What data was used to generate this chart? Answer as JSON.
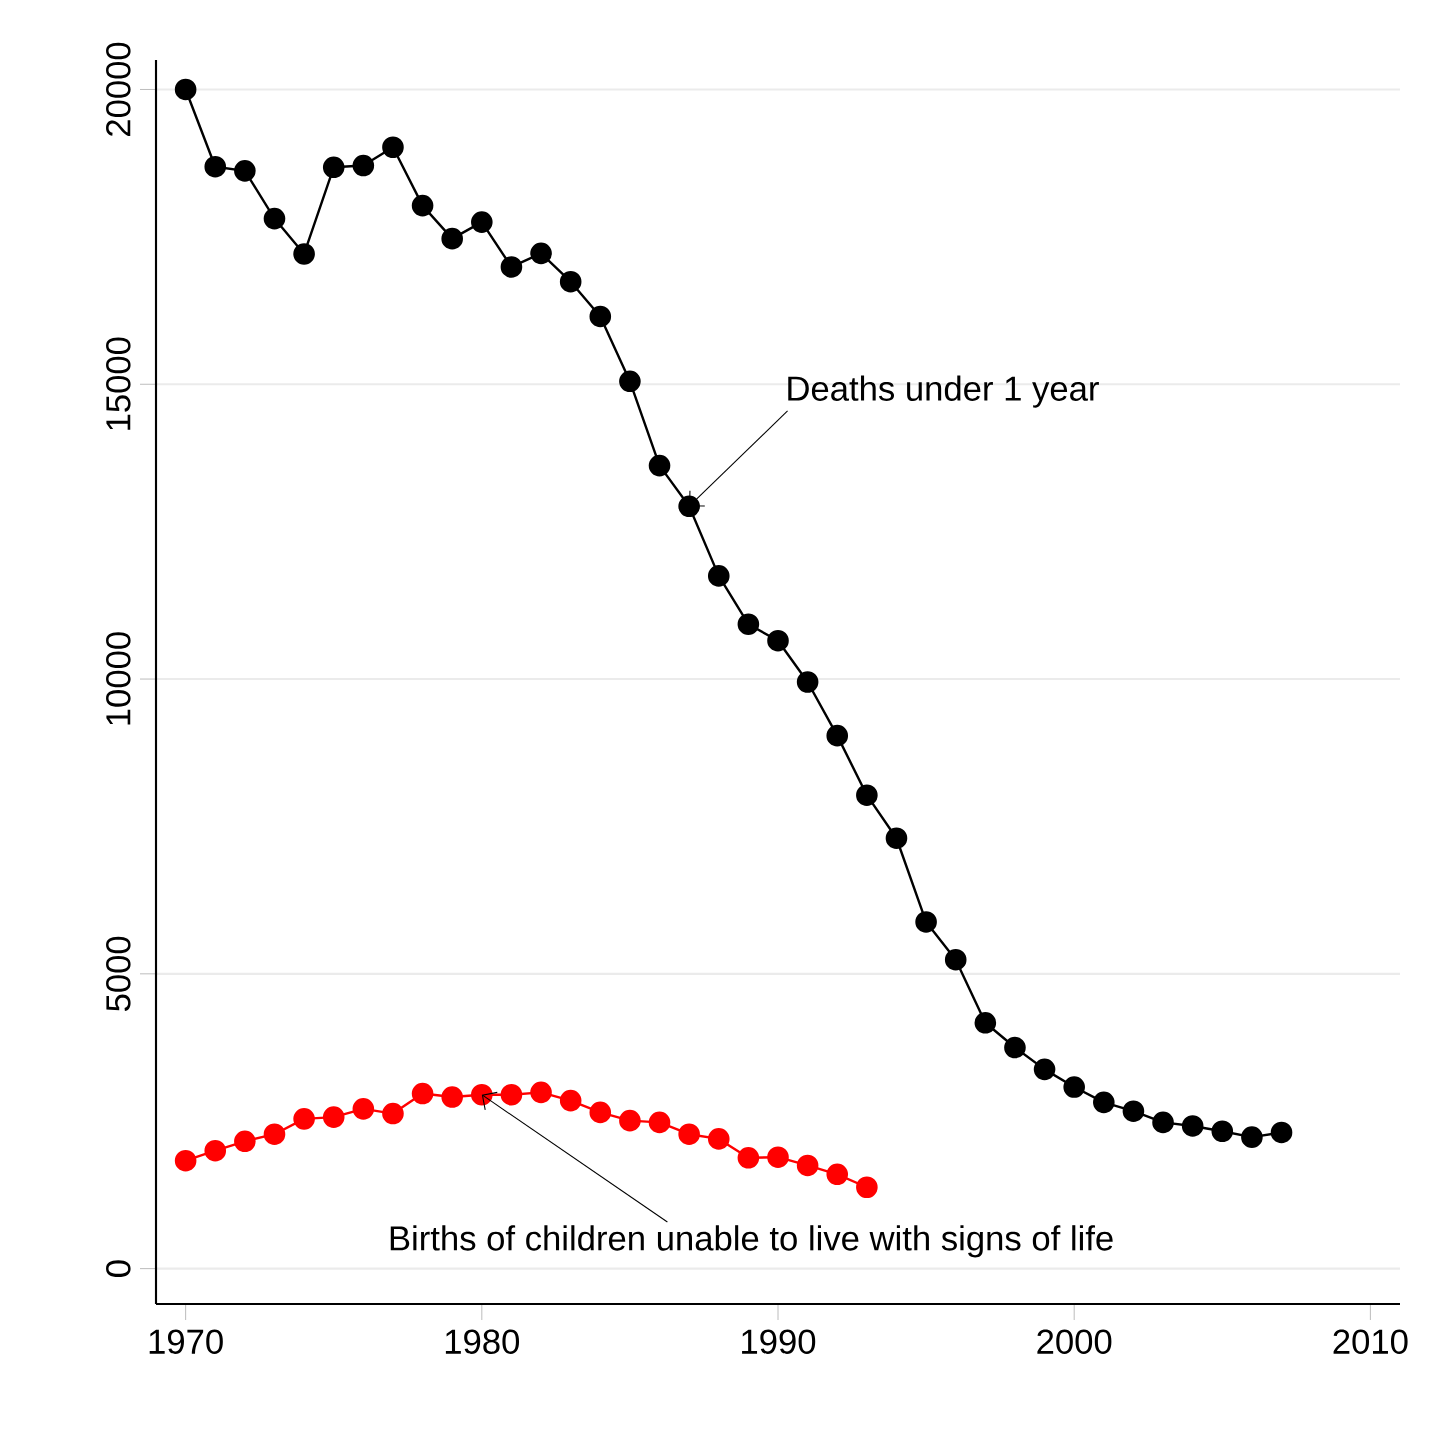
{
  "chart_data": {
    "type": "line",
    "x": [
      1970,
      1971,
      1972,
      1973,
      1974,
      1975,
      1976,
      1977,
      1978,
      1979,
      1980,
      1981,
      1982,
      1983,
      1984,
      1985,
      1986,
      1987,
      1988,
      1989,
      1990,
      1991,
      1992,
      1993,
      1994,
      1995,
      1996,
      1997,
      1998,
      1999,
      2000,
      2001,
      2002,
      2003,
      2004,
      2005,
      2006,
      2007
    ],
    "series": [
      {
        "color": "#000000",
        "values": [
          20000,
          18690,
          18620,
          17810,
          17210,
          18680,
          18710,
          19020,
          18030,
          17470,
          17750,
          16990,
          17220,
          16740,
          16150,
          15050,
          13620,
          12930,
          11750,
          10930,
          10650,
          9950,
          9040,
          8030,
          7300,
          5880,
          5240,
          4170,
          3750,
          3380,
          3080,
          2820,
          2670,
          2480,
          2420,
          2330,
          2230,
          2310
        ]
      },
      {
        "color": "#ff0000",
        "values": [
          1830,
          2000,
          2160,
          2280,
          2540,
          2570,
          2710,
          2630,
          2970,
          2910,
          2950,
          2950,
          2990,
          2850,
          2650,
          2510,
          2480,
          2280,
          2200,
          1880,
          1890,
          1750,
          1600,
          1380,
          null,
          null,
          null,
          null,
          null,
          null,
          null,
          null,
          null,
          null,
          null,
          null,
          null,
          null
        ]
      }
    ],
    "annotations": [
      {
        "text": "Deaths under 1 year",
        "x": 1987,
        "y": 12930
      },
      {
        "text": "Births of children unable to live with signs of life",
        "x": 1980,
        "y": 2950
      }
    ],
    "xlim": [
      1969,
      2011
    ],
    "ylim": [
      -600,
      20500
    ],
    "xticks": [
      1970,
      1980,
      1990,
      2000,
      2010
    ],
    "yticks": [
      0,
      5000,
      10000,
      15000,
      20000
    ],
    "grid": "y",
    "marker": "circle",
    "line_style": "solid"
  }
}
